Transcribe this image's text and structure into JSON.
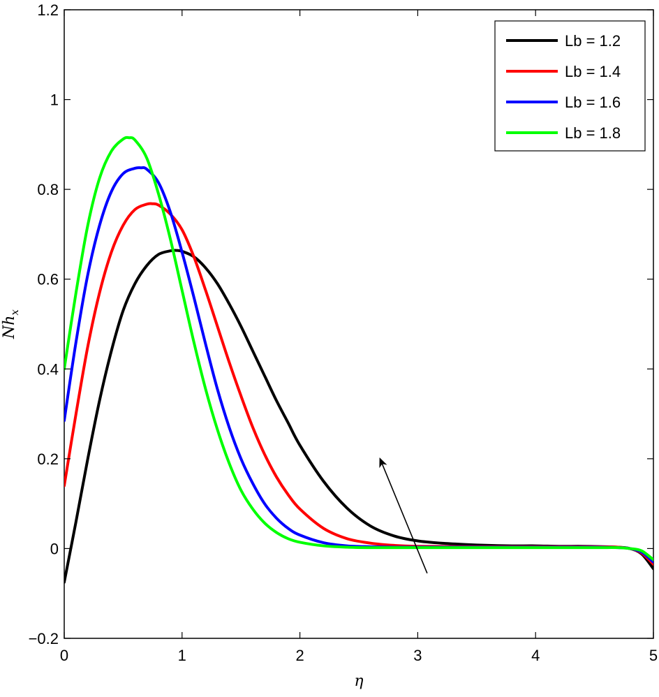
{
  "chart_data": {
    "type": "line",
    "xlabel": "η",
    "ylabel": {
      "base": "Nh",
      "sub": "x"
    },
    "xlim": [
      0,
      5
    ],
    "ylim": [
      -0.2,
      1.2
    ],
    "xticks": [
      0,
      1,
      2,
      3,
      4,
      5
    ],
    "xtick_labels": [
      "0",
      "1",
      "2",
      "3",
      "4",
      "5"
    ],
    "yticks": [
      -0.2,
      0,
      0.2,
      0.4,
      0.6,
      0.8,
      1,
      1.2
    ],
    "ytick_labels": [
      "−0.2",
      "0",
      "0.2",
      "0.4",
      "0.6",
      "0.8",
      "1",
      "1.2"
    ],
    "grid": false,
    "legend_position": "top-right",
    "series": [
      {
        "name": "Lb = 1.2",
        "color": "#000000",
        "x": [
          0,
          0.1,
          0.2,
          0.3,
          0.4,
          0.5,
          0.6,
          0.7,
          0.8,
          0.9,
          0.95,
          1.0,
          1.1,
          1.2,
          1.3,
          1.4,
          1.5,
          1.6,
          1.7,
          1.8,
          1.9,
          2.0,
          2.2,
          2.4,
          2.6,
          2.8,
          3.0,
          3.2,
          3.4,
          3.6,
          3.8,
          4.0,
          4.2,
          4.4,
          4.6,
          4.7,
          4.8,
          4.9,
          5.0
        ],
        "y": [
          -0.075,
          0.06,
          0.2,
          0.33,
          0.44,
          0.53,
          0.59,
          0.63,
          0.655,
          0.663,
          0.664,
          0.662,
          0.65,
          0.625,
          0.59,
          0.545,
          0.495,
          0.44,
          0.385,
          0.33,
          0.28,
          0.23,
          0.15,
          0.09,
          0.05,
          0.028,
          0.017,
          0.012,
          0.009,
          0.007,
          0.006,
          0.006,
          0.005,
          0.005,
          0.004,
          0.003,
          0.0,
          -0.012,
          -0.045
        ]
      },
      {
        "name": "Lb = 1.4",
        "color": "#ff0000",
        "x": [
          0,
          0.1,
          0.2,
          0.3,
          0.4,
          0.5,
          0.6,
          0.7,
          0.75,
          0.8,
          0.9,
          1.0,
          1.1,
          1.2,
          1.3,
          1.4,
          1.5,
          1.6,
          1.7,
          1.8,
          1.9,
          2.0,
          2.2,
          2.4,
          2.6,
          2.8,
          3.0,
          3.5,
          4.0,
          4.5,
          4.7,
          4.8,
          4.9,
          5.0
        ],
        "y": [
          0.14,
          0.3,
          0.45,
          0.57,
          0.66,
          0.72,
          0.755,
          0.767,
          0.768,
          0.765,
          0.745,
          0.71,
          0.65,
          0.575,
          0.495,
          0.415,
          0.34,
          0.27,
          0.21,
          0.16,
          0.12,
          0.088,
          0.045,
          0.022,
          0.012,
          0.007,
          0.005,
          0.004,
          0.004,
          0.004,
          0.003,
          0.0,
          -0.01,
          -0.035
        ]
      },
      {
        "name": "Lb = 1.6",
        "color": "#0000ff",
        "x": [
          0,
          0.1,
          0.2,
          0.3,
          0.4,
          0.5,
          0.6,
          0.65,
          0.7,
          0.8,
          0.9,
          1.0,
          1.1,
          1.2,
          1.3,
          1.4,
          1.5,
          1.6,
          1.7,
          1.8,
          1.9,
          2.0,
          2.2,
          2.4,
          2.6,
          2.8,
          3.0,
          3.5,
          4.0,
          4.5,
          4.7,
          4.8,
          4.9,
          5.0
        ],
        "y": [
          0.285,
          0.46,
          0.61,
          0.72,
          0.795,
          0.835,
          0.847,
          0.848,
          0.845,
          0.815,
          0.75,
          0.66,
          0.56,
          0.455,
          0.355,
          0.27,
          0.2,
          0.145,
          0.1,
          0.068,
          0.045,
          0.03,
          0.013,
          0.006,
          0.004,
          0.003,
          0.003,
          0.003,
          0.003,
          0.003,
          0.002,
          0.0,
          -0.008,
          -0.03
        ]
      },
      {
        "name": "Lb = 1.8",
        "color": "#00ff00",
        "x": [
          0,
          0.1,
          0.2,
          0.3,
          0.4,
          0.5,
          0.55,
          0.6,
          0.7,
          0.8,
          0.9,
          1.0,
          1.1,
          1.2,
          1.3,
          1.4,
          1.5,
          1.6,
          1.7,
          1.8,
          1.9,
          2.0,
          2.2,
          2.4,
          2.6,
          2.8,
          3.0,
          3.5,
          4.0,
          4.5,
          4.7,
          4.8,
          4.9,
          5.0
        ],
        "y": [
          0.4,
          0.57,
          0.72,
          0.825,
          0.885,
          0.912,
          0.915,
          0.91,
          0.87,
          0.79,
          0.69,
          0.575,
          0.46,
          0.355,
          0.265,
          0.19,
          0.13,
          0.088,
          0.057,
          0.036,
          0.022,
          0.014,
          0.006,
          0.003,
          0.002,
          0.002,
          0.002,
          0.002,
          0.002,
          0.002,
          0.002,
          0.0,
          -0.005,
          -0.025
        ]
      }
    ],
    "annotations": [
      {
        "type": "arrow",
        "from": [
          3.08,
          -0.055
        ],
        "to": [
          2.68,
          0.2
        ]
      }
    ]
  }
}
